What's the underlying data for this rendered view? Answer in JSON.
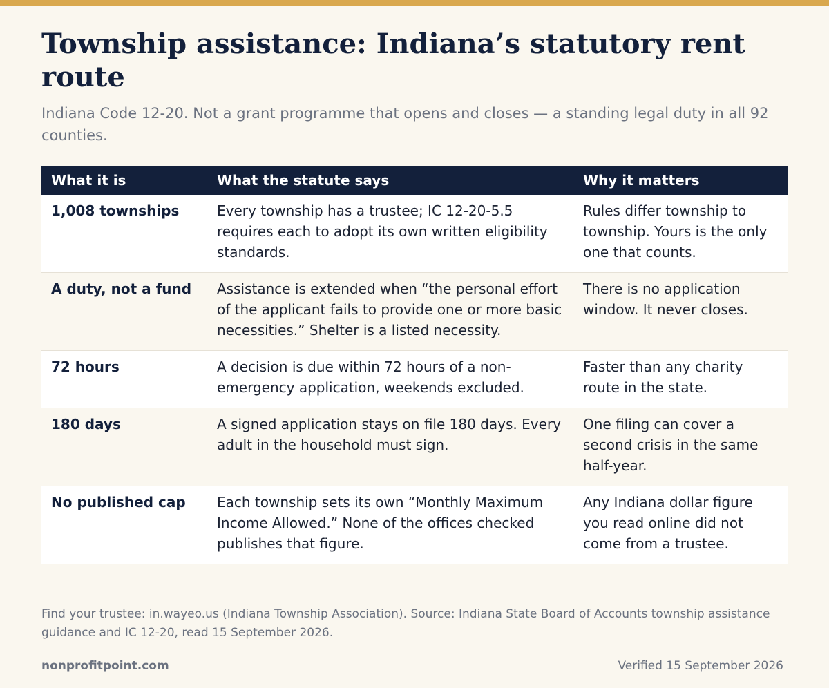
{
  "title": "Township assistance: Indiana’s statutory rent route",
  "subtitle": "Indiana Code 12-20. Not a grant programme that opens and closes — a standing legal duty in all 92 counties.",
  "table": {
    "headers": [
      "What it is",
      "What the statute says",
      "Why it matters"
    ],
    "rows": [
      {
        "what": "1,008 townships",
        "statute": "Every township has a trustee; IC 12-20-5.5 requires each to adopt its own written eligibility standards.",
        "why": "Rules differ township to township. Yours is the only one that counts."
      },
      {
        "what": "A duty, not a fund",
        "statute": "Assistance is extended when “the personal effort of the applicant fails to provide one or more basic necessities.” Shelter is a listed necessity.",
        "why": "There is no application window. It never closes."
      },
      {
        "what": "72 hours",
        "statute": "A decision is due within 72 hours of a non-emergency application, weekends excluded.",
        "why": "Faster than any charity route in the state."
      },
      {
        "what": "180 days",
        "statute": "A signed application stays on file 180 days. Every adult in the household must sign.",
        "why": "One filing can cover a second crisis in the same half-year."
      },
      {
        "what": "No published cap",
        "statute": "Each township sets its own “Monthly Maximum Income Allowed.” None of the offices checked publishes that figure.",
        "why": "Any Indiana dollar figure you read online did not come from a trustee."
      }
    ]
  },
  "footnote": "Find your trustee: in.wayeo.us (Indiana Township Association). Source: Indiana State Board of Accounts township assistance guidance and IC 12-20, read 15 September 2026.",
  "footer": {
    "brand": "nonprofitpoint.com",
    "verified": "Verified 15 September 2026"
  },
  "colors": {
    "accent_bar": "#d9a84e",
    "header_bg": "#13203b",
    "page_bg": "#faf7ef"
  }
}
